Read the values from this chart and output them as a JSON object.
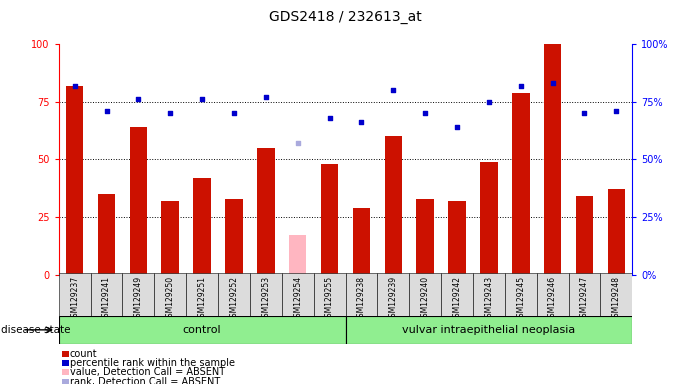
{
  "title": "GDS2418 / 232613_at",
  "samples": [
    "GSM129237",
    "GSM129241",
    "GSM129249",
    "GSM129250",
    "GSM129251",
    "GSM129252",
    "GSM129253",
    "GSM129254",
    "GSM129255",
    "GSM129238",
    "GSM129239",
    "GSM129240",
    "GSM129242",
    "GSM129243",
    "GSM129245",
    "GSM129246",
    "GSM129247",
    "GSM129248"
  ],
  "bar_values": [
    82,
    35,
    64,
    32,
    42,
    33,
    55,
    17,
    48,
    29,
    60,
    33,
    32,
    49,
    79,
    100,
    34,
    37
  ],
  "bar_absent": [
    false,
    false,
    false,
    false,
    false,
    false,
    false,
    true,
    false,
    false,
    false,
    false,
    false,
    false,
    false,
    false,
    false,
    false
  ],
  "dot_values": [
    82,
    71,
    76,
    70,
    76,
    70,
    77,
    57,
    68,
    66,
    80,
    70,
    64,
    75,
    82,
    83,
    70,
    71
  ],
  "dot_absent": [
    false,
    false,
    false,
    false,
    false,
    false,
    false,
    true,
    false,
    false,
    false,
    false,
    false,
    false,
    false,
    false,
    false,
    false
  ],
  "control_count": 9,
  "disease_group": "vulvar intraepithelial neoplasia",
  "control_label": "control",
  "ylim": [
    0,
    100
  ],
  "bar_color": "#CC1100",
  "bar_absent_color": "#FFB6C1",
  "dot_color": "#0000CC",
  "dot_absent_color": "#AAAADD",
  "grid_lines": [
    25,
    50,
    75
  ],
  "tick_bg_color": "#DCDCDC",
  "plot_bg": "#FFFFFF",
  "control_fill": "#90EE90",
  "disease_fill": "#90EE90",
  "legend_items": [
    {
      "label": "count",
      "color": "#CC1100"
    },
    {
      "label": "percentile rank within the sample",
      "color": "#0000CC"
    },
    {
      "label": "value, Detection Call = ABSENT",
      "color": "#FFB6C1"
    },
    {
      "label": "rank, Detection Call = ABSENT",
      "color": "#AAAADD"
    }
  ]
}
